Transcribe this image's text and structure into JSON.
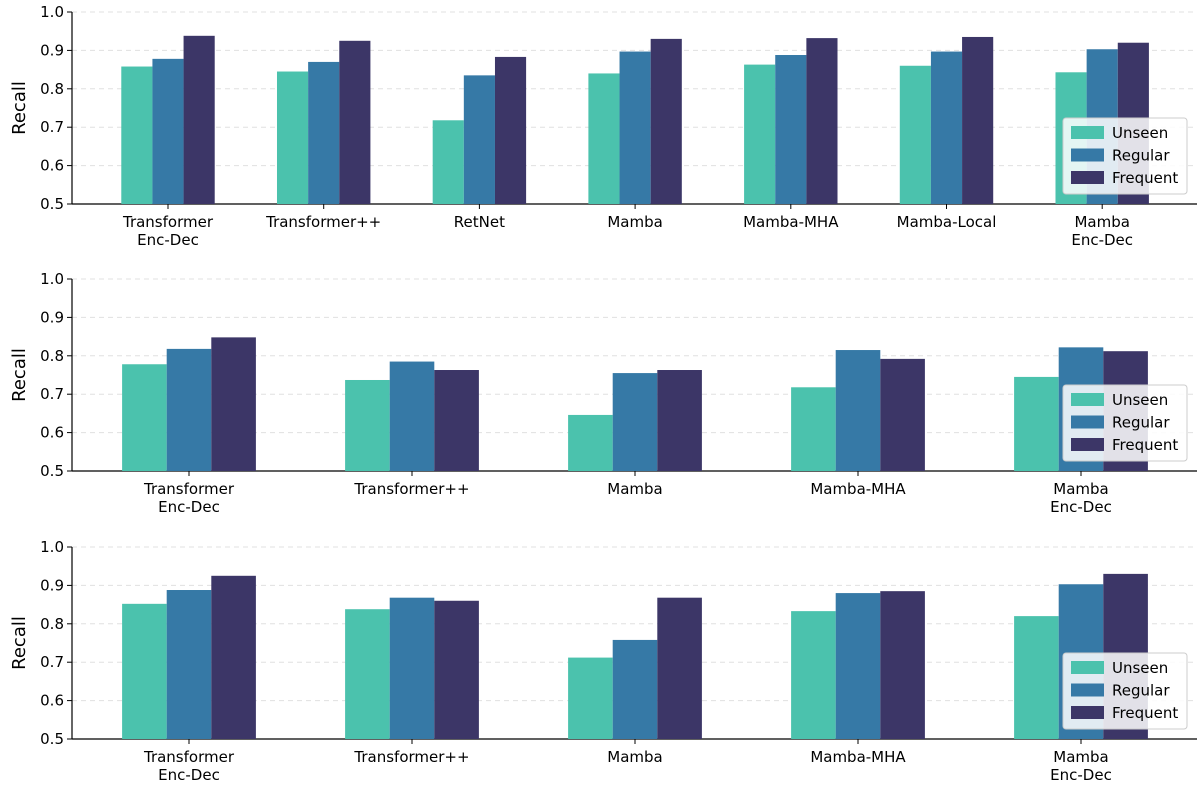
{
  "colors": {
    "Unseen": "#4bc2ad",
    "Regular": "#3679a6",
    "Frequent": "#3c3667"
  },
  "chart_data": [
    {
      "type": "bar",
      "ylabel": "Recall",
      "ylim": [
        0.5,
        1.0
      ],
      "yticks": [
        "0.5",
        "0.6",
        "0.7",
        "0.8",
        "0.9",
        "1.0"
      ],
      "grid": "y-dashed",
      "legend_position": "lower-right",
      "categories": [
        [
          "Transformer",
          "Enc-Dec"
        ],
        [
          "Transformer++"
        ],
        [
          "RetNet"
        ],
        [
          "Mamba"
        ],
        [
          "Mamba-MHA"
        ],
        [
          "Mamba-Local"
        ],
        [
          "Mamba",
          "Enc-Dec"
        ]
      ],
      "series": [
        {
          "name": "Unseen",
          "values": [
            0.858,
            0.845,
            0.718,
            0.84,
            0.863,
            0.86,
            0.843
          ]
        },
        {
          "name": "Regular",
          "values": [
            0.878,
            0.87,
            0.835,
            0.897,
            0.888,
            0.897,
            0.903
          ]
        },
        {
          "name": "Frequent",
          "values": [
            0.938,
            0.925,
            0.883,
            0.93,
            0.932,
            0.935,
            0.92
          ]
        }
      ]
    },
    {
      "type": "bar",
      "ylabel": "Recall",
      "ylim": [
        0.5,
        1.0
      ],
      "yticks": [
        "0.5",
        "0.6",
        "0.7",
        "0.8",
        "0.9",
        "1.0"
      ],
      "grid": "y-dashed",
      "legend_position": "lower-right",
      "categories": [
        [
          "Transformer",
          "Enc-Dec"
        ],
        [
          "Transformer++"
        ],
        [
          "Mamba"
        ],
        [
          "Mamba-MHA"
        ],
        [
          "Mamba",
          "Enc-Dec"
        ]
      ],
      "series": [
        {
          "name": "Unseen",
          "values": [
            0.778,
            0.737,
            0.646,
            0.718,
            0.745
          ]
        },
        {
          "name": "Regular",
          "values": [
            0.818,
            0.785,
            0.755,
            0.815,
            0.822
          ]
        },
        {
          "name": "Frequent",
          "values": [
            0.848,
            0.763,
            0.763,
            0.792,
            0.812
          ]
        }
      ]
    },
    {
      "type": "bar",
      "ylabel": "Recall",
      "ylim": [
        0.5,
        1.0
      ],
      "yticks": [
        "0.5",
        "0.6",
        "0.7",
        "0.8",
        "0.9",
        "1.0"
      ],
      "grid": "y-dashed",
      "legend_position": "lower-right",
      "categories": [
        [
          "Transformer",
          "Enc-Dec"
        ],
        [
          "Transformer++"
        ],
        [
          "Mamba"
        ],
        [
          "Mamba-MHA"
        ],
        [
          "Mamba",
          "Enc-Dec"
        ]
      ],
      "series": [
        {
          "name": "Unseen",
          "values": [
            0.852,
            0.838,
            0.712,
            0.833,
            0.82
          ]
        },
        {
          "name": "Regular",
          "values": [
            0.888,
            0.868,
            0.758,
            0.88,
            0.903
          ]
        },
        {
          "name": "Frequent",
          "values": [
            0.925,
            0.86,
            0.868,
            0.885,
            0.93
          ]
        }
      ]
    }
  ]
}
